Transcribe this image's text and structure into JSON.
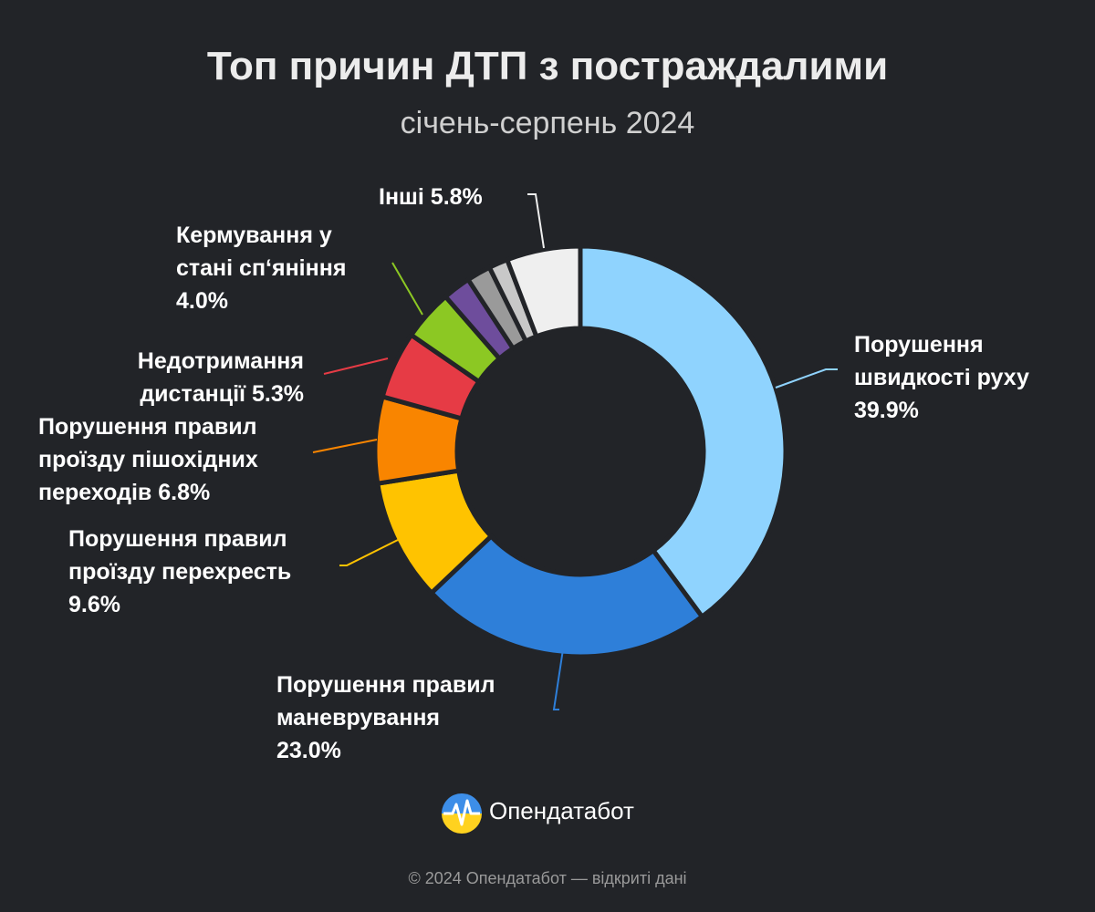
{
  "chart_data": {
    "type": "donut",
    "title": "Топ причин ДТП з постраждалими",
    "subtitle": "січень-серпень 2024",
    "categories": [
      "Порушення швидкості руху",
      "Порушення правил маневрування",
      "Порушення правил проїзду перехресть",
      "Порушення правил проїзду пішохідних переходів",
      "Недотримання дистанції",
      "Кермування у стані сп‘яніння",
      null,
      null,
      null,
      "Інші"
    ],
    "values": [
      39.9,
      23.0,
      9.6,
      6.8,
      5.3,
      4.0,
      2.2,
      1.9,
      1.5,
      5.8
    ],
    "value_labels": [
      "39.9%",
      "23.0%",
      "9.6%",
      "6.8%",
      "5.3%",
      "4.0%",
      null,
      null,
      null,
      "5.8%"
    ],
    "colors": [
      "#8fd3fe",
      "#2e7fd9",
      "#ffc300",
      "#f98500",
      "#e63b45",
      "#8cc823",
      "#6e4d9c",
      "#9a9a9a",
      "#c8c8c8",
      "#efefef"
    ]
  },
  "logo": "Опендатабот",
  "footer": "© 2024 Опендатабот — відкриті дані"
}
